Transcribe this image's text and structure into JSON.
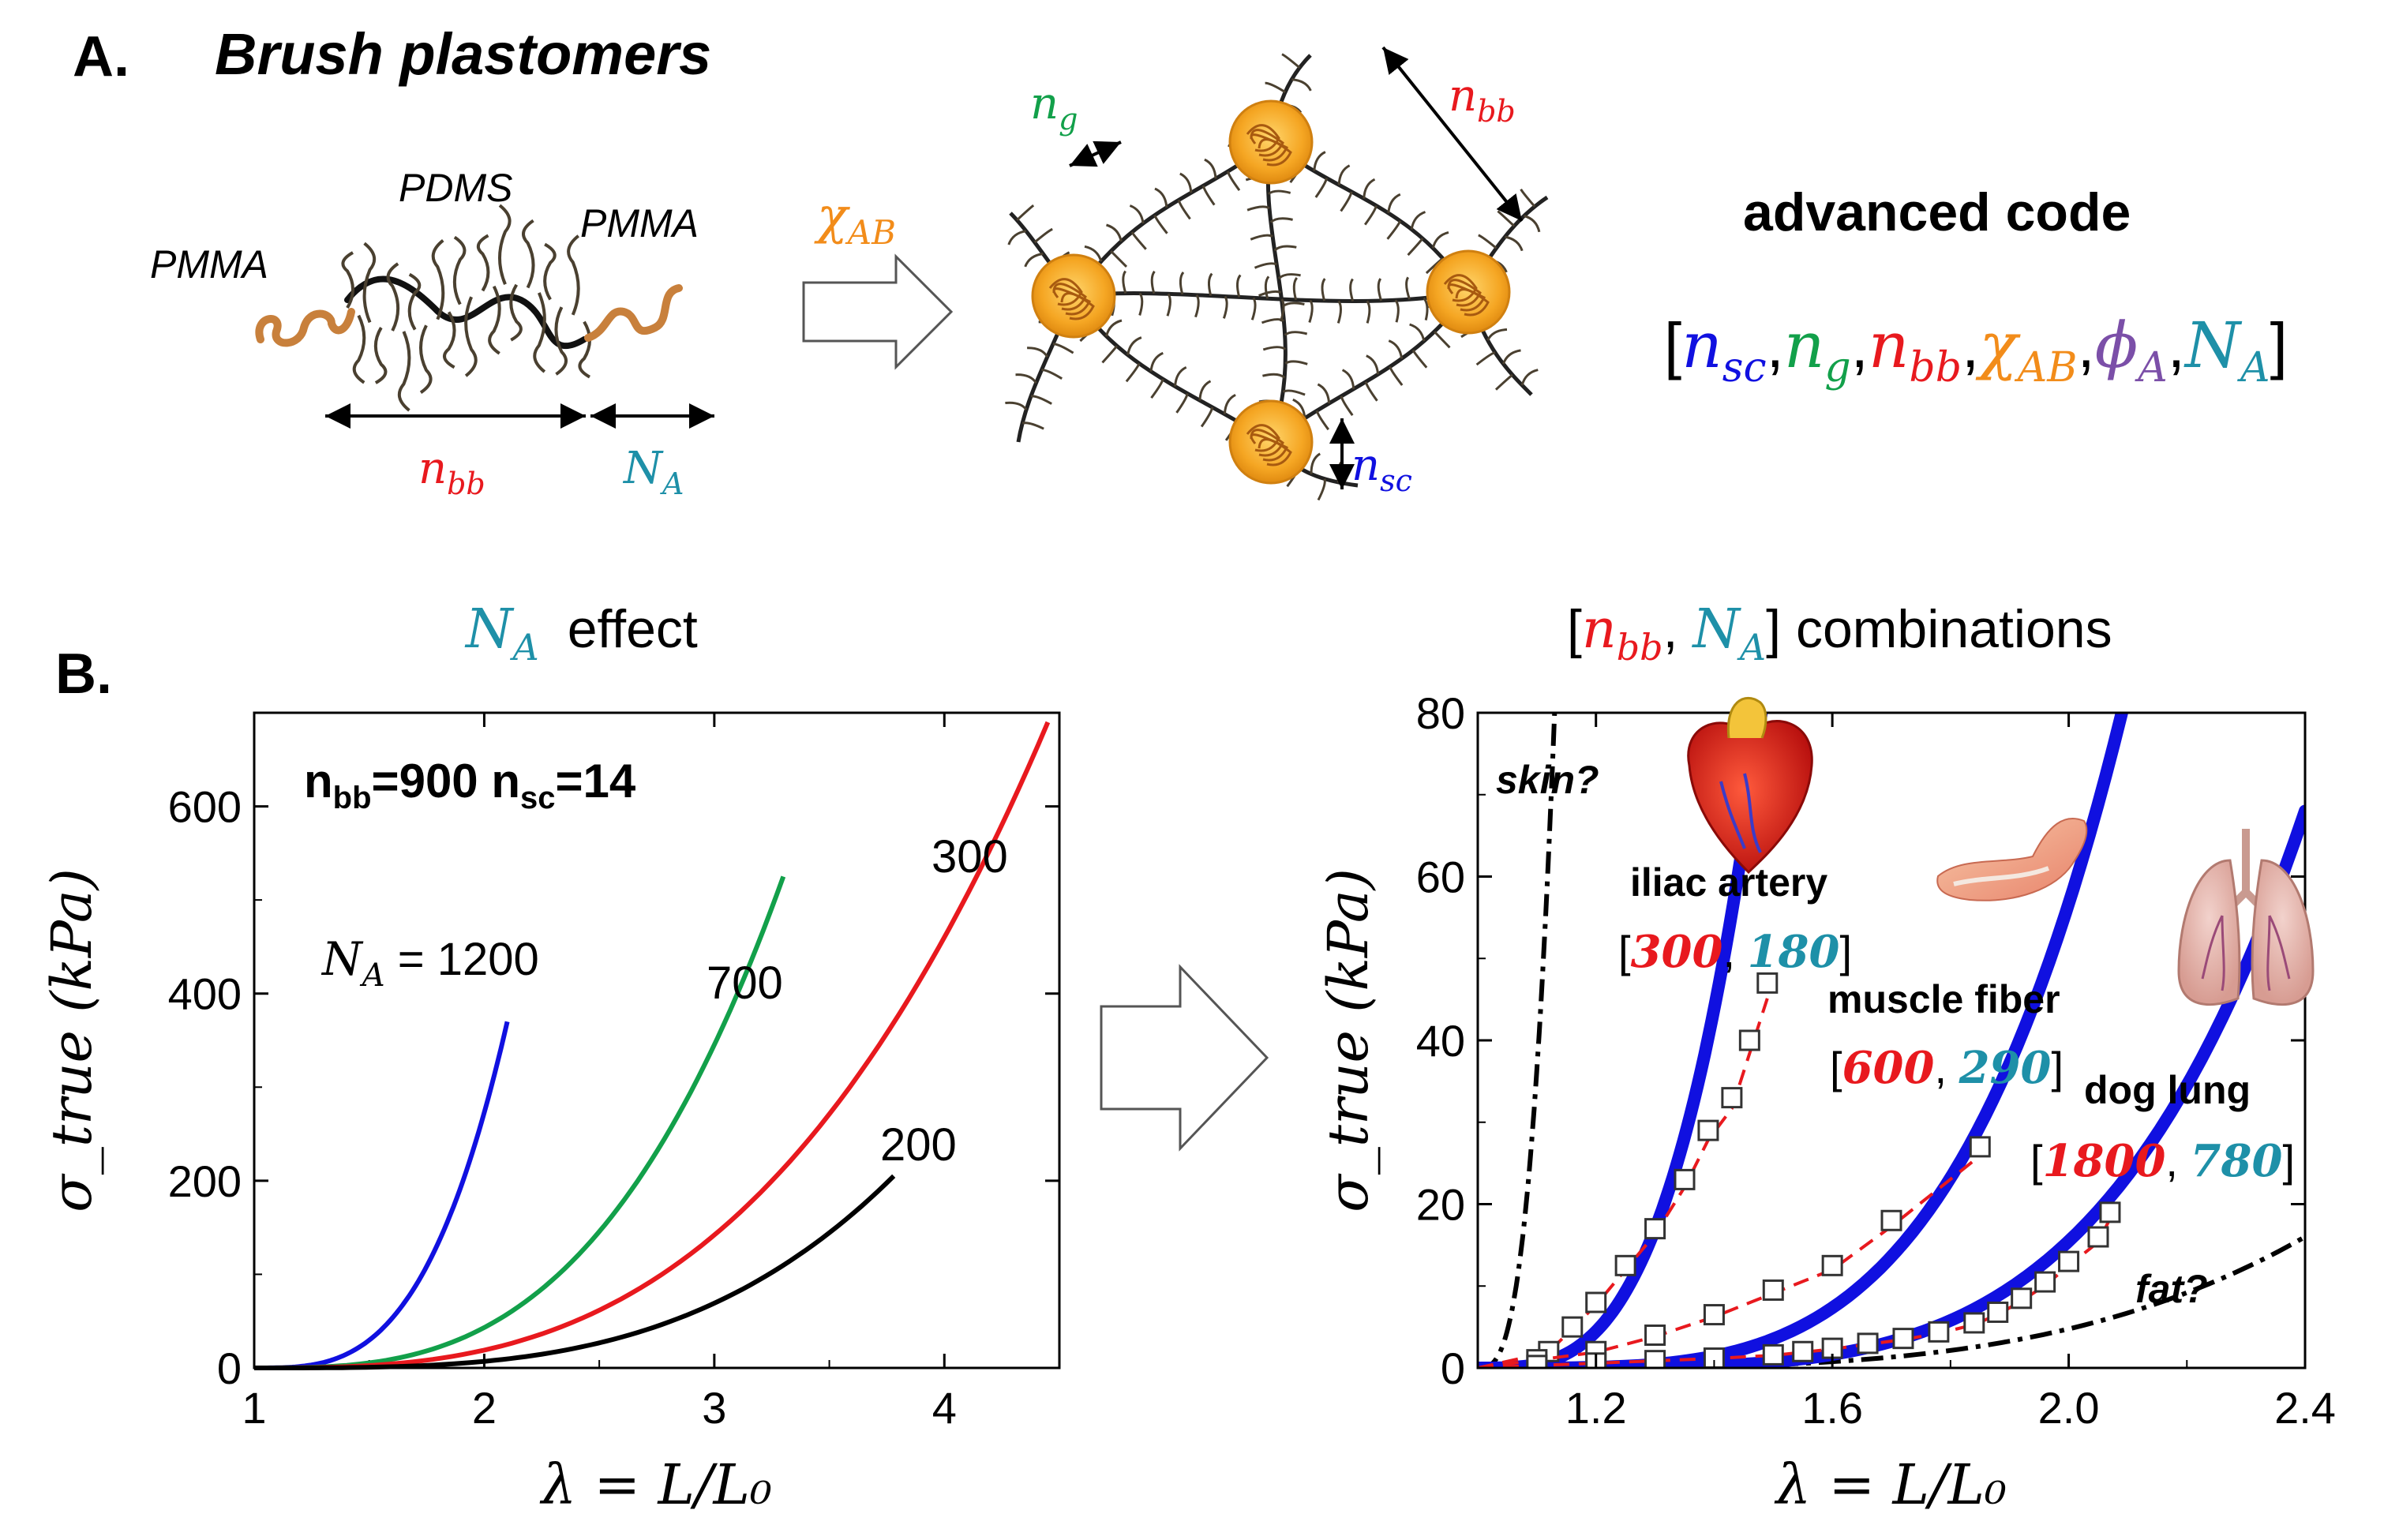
{
  "colors": {
    "blue": "#1010e0",
    "green": "#12a04a",
    "red": "#e8191e",
    "orange": "#f28c1a",
    "purple": "#7b4fa8",
    "teal": "#1e90a8",
    "black": "#000000",
    "chainOrange": "#c8803c",
    "brush": "#4a4030",
    "gold": "#f5b83a"
  },
  "panelA": {
    "label": "A.",
    "title": "Brush plastomers",
    "pmma_left": "PMMA",
    "pdms": "PDMS",
    "pmma_right": "PMMA",
    "nbb_base": "n",
    "nbb_sub": "bb",
    "NA_base": "N",
    "NA_sub": "A",
    "chi_base": "χ",
    "chi_sub": "AB",
    "ng_base": "n",
    "ng_sub": "g",
    "net_nbb_base": "n",
    "net_nbb_sub": "bb",
    "nsc_base": "n",
    "nsc_sub": "sc",
    "code_title": "advanced code",
    "code_items": [
      {
        "base": "n",
        "sub": "sc",
        "color": "#1010e0"
      },
      {
        "base": "n",
        "sub": "g",
        "color": "#12a04a"
      },
      {
        "base": "n",
        "sub": "bb",
        "color": "#e8191e"
      },
      {
        "base": "χ",
        "sub": "AB",
        "color": "#f28c1a"
      },
      {
        "base": "ϕ",
        "sub": "A",
        "color": "#7b4fa8"
      },
      {
        "base": "N",
        "sub": "A",
        "color": "#1e90a8"
      }
    ]
  },
  "panelB": {
    "label": "B."
  },
  "chart_data": [
    {
      "type": "line",
      "title": "N_A effect",
      "title_symbol_base": "N",
      "title_symbol_sub": "A",
      "title_text": "effect",
      "xlabel": "λ = L/L₀",
      "ylabel": "σ_true (kPa)",
      "xlim": [
        1,
        4.5
      ],
      "ylim": [
        0,
        700
      ],
      "xticks": [
        1,
        2,
        3,
        4
      ],
      "yticks": [
        0,
        200,
        400,
        600
      ],
      "annotation_bold": "n_bb=900 n_sc=14",
      "ann_n1": "n",
      "ann_bb": "bb",
      "ann_v1": "=900 ",
      "ann_n2": "n",
      "ann_sc": "sc",
      "ann_v2": "=14",
      "series": [
        {
          "name": "N_A = 1200",
          "label": "1200",
          "label_prefix": "N",
          "label_sub": "A",
          "label_eq": " = ",
          "color": "#1010e0",
          "lambda_max": 2.1,
          "sigma_max": 370,
          "exponent": 3.2
        },
        {
          "name": "700",
          "label": "700",
          "color": "#12a04a",
          "lambda_max": 3.3,
          "sigma_max": 525,
          "exponent": 3.0
        },
        {
          "name": "300",
          "label": "300",
          "color": "#e8191e",
          "lambda_max": 4.45,
          "sigma_max": 690,
          "exponent": 2.9
        },
        {
          "name": "200",
          "label": "200",
          "color": "#000000",
          "lambda_max": 3.78,
          "sigma_max": 205,
          "exponent": 3.3
        }
      ]
    },
    {
      "type": "line",
      "title": "[n_bb, N_A] combinations",
      "title_nbb_base": "n",
      "title_nbb_sub": "bb",
      "title_NA_base": "N",
      "title_NA_sub": "A",
      "title_text": "combinations",
      "xlabel": "λ = L/L₀",
      "ylabel": "σ_true (kPa)",
      "xlim": [
        1.0,
        2.4
      ],
      "ylim": [
        0,
        80
      ],
      "xticks": [
        1.2,
        1.6,
        2.0,
        2.4
      ],
      "yticks": [
        0,
        20,
        40,
        60,
        80
      ],
      "tissues": [
        {
          "name": "iliac artery",
          "nbb": "300",
          "NA": "180"
        },
        {
          "name": "muscle fiber",
          "nbb": "600",
          "NA": "290"
        },
        {
          "name": "dog lung",
          "nbb": "1800",
          "NA": "780"
        }
      ],
      "reference_curves": [
        {
          "name": "skin?",
          "lambda_at_80": 1.13
        },
        {
          "name": "fat?",
          "lambda_at_16": 2.4
        }
      ],
      "model_curves": [
        {
          "name": "iliac artery fit",
          "lambda_max": 1.48,
          "sigma_max": 80,
          "exponent": 3.3
        },
        {
          "name": "muscle fiber fit",
          "lambda_max": 2.09,
          "sigma_max": 80,
          "exponent": 4.0
        },
        {
          "name": "dog lung fit",
          "lambda_max": 2.4,
          "sigma_max": 68,
          "exponent": 4.4
        }
      ],
      "experimental": [
        {
          "name": "iliac artery data",
          "points": [
            [
              1.0,
              0
            ],
            [
              1.12,
              2
            ],
            [
              1.16,
              5
            ],
            [
              1.2,
              8
            ],
            [
              1.25,
              12.5
            ],
            [
              1.3,
              17
            ],
            [
              1.35,
              23
            ],
            [
              1.39,
              29
            ],
            [
              1.43,
              33
            ],
            [
              1.46,
              40
            ],
            [
              1.49,
              47
            ]
          ]
        },
        {
          "name": "muscle fiber data",
          "points": [
            [
              1.0,
              0
            ],
            [
              1.1,
              1
            ],
            [
              1.2,
              2
            ],
            [
              1.3,
              4
            ],
            [
              1.4,
              6.5
            ],
            [
              1.5,
              9.5
            ],
            [
              1.6,
              12.5
            ],
            [
              1.7,
              18
            ],
            [
              1.85,
              27
            ]
          ]
        },
        {
          "name": "dog lung data",
          "points": [
            [
              1.0,
              0
            ],
            [
              1.1,
              0.3
            ],
            [
              1.2,
              0.6
            ],
            [
              1.3,
              0.9
            ],
            [
              1.4,
              1.2
            ],
            [
              1.5,
              1.6
            ],
            [
              1.55,
              2
            ],
            [
              1.6,
              2.4
            ],
            [
              1.66,
              3
            ],
            [
              1.72,
              3.6
            ],
            [
              1.78,
              4.4
            ],
            [
              1.84,
              5.5
            ],
            [
              1.88,
              6.8
            ],
            [
              1.92,
              8.5
            ],
            [
              1.96,
              10.5
            ],
            [
              2.0,
              13
            ],
            [
              2.05,
              16
            ],
            [
              2.07,
              19
            ]
          ]
        }
      ]
    }
  ]
}
